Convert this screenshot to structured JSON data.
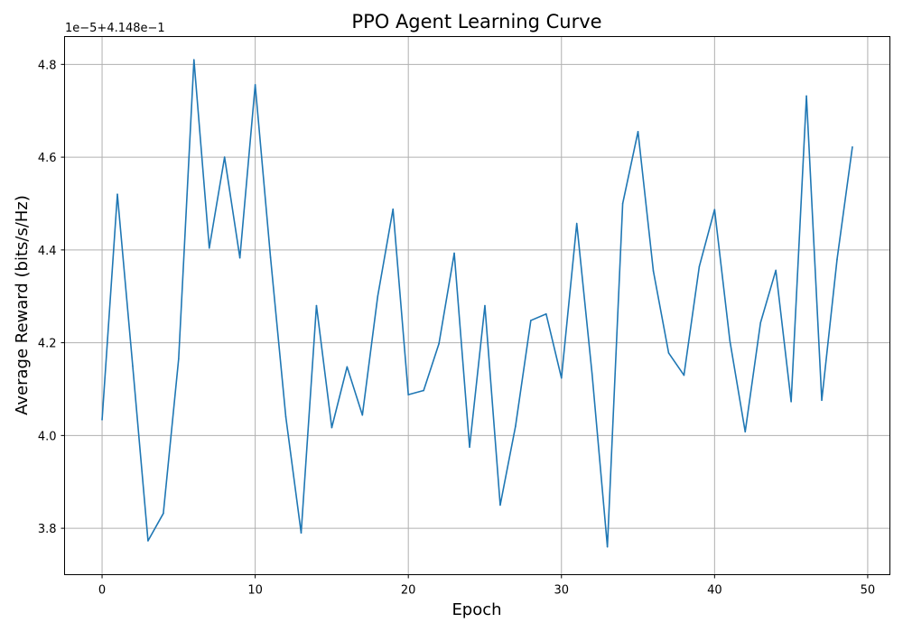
{
  "chart_data": {
    "type": "line",
    "title": "PPO Agent Learning Curve",
    "xlabel": "Epoch",
    "ylabel": "Average Reward (bits/s/Hz)",
    "offset_text": "1e−5+4.148e−1",
    "xlim": [
      -2.45,
      51.45
    ],
    "ylim": [
      3.7,
      4.86
    ],
    "x_ticks": [
      0,
      10,
      20,
      30,
      40,
      50
    ],
    "x_tick_labels": [
      "0",
      "10",
      "20",
      "30",
      "40",
      "50"
    ],
    "y_ticks": [
      3.8,
      4.0,
      4.2,
      4.4,
      4.6,
      4.8
    ],
    "y_tick_labels": [
      "3.8",
      "4.0",
      "4.2",
      "4.4",
      "4.6",
      "4.8"
    ],
    "grid": true,
    "color": "#1f77b4",
    "series": [
      {
        "x": [
          0,
          1,
          2,
          3,
          4,
          5,
          6,
          7,
          8,
          9,
          10,
          11,
          12,
          13,
          14,
          15,
          16,
          17,
          18,
          19,
          20,
          21,
          22,
          23,
          24,
          25,
          26,
          27,
          28,
          29,
          30,
          31,
          32,
          33,
          34,
          35,
          36,
          37,
          38,
          39,
          40,
          41,
          42,
          43,
          44,
          45,
          46,
          47,
          48,
          49
        ],
        "values": [
          4.034,
          4.52,
          4.15,
          3.773,
          3.832,
          4.165,
          4.81,
          4.404,
          4.6,
          4.383,
          4.756,
          4.384,
          4.04,
          3.79,
          4.28,
          4.017,
          4.148,
          4.044,
          4.3,
          4.488,
          4.088,
          4.097,
          4.198,
          4.393,
          3.975,
          4.28,
          3.85,
          4.02,
          4.248,
          4.262,
          4.124,
          4.457,
          4.133,
          3.76,
          4.5,
          4.655,
          4.355,
          4.178,
          4.13,
          4.364,
          4.487,
          4.204,
          4.008,
          4.243,
          4.356,
          4.073,
          4.732,
          4.076,
          4.38,
          4.622
        ]
      }
    ]
  }
}
